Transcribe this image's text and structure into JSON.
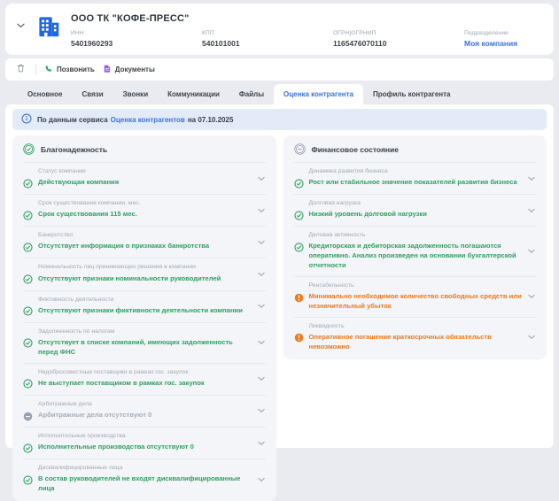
{
  "header": {
    "company_name": "ООО ТК \"КОФЕ-ПРЕСС\"",
    "fields": [
      {
        "id": "inn",
        "label": "ИНН",
        "value": "5401960293",
        "link": false
      },
      {
        "id": "kpp",
        "label": "КПП",
        "value": "540101001",
        "link": false
      },
      {
        "id": "ogrn",
        "label": "ОГРН|ОГРНИП",
        "value": "1165476070110",
        "link": false
      },
      {
        "id": "division",
        "label": "Подразделение",
        "value": "Моя компания",
        "link": true
      }
    ]
  },
  "toolbar": {
    "call_label": "Позвонить",
    "documents_label": "Документы"
  },
  "tabs": [
    {
      "id": "main",
      "label": "Основное",
      "active": false
    },
    {
      "id": "relations",
      "label": "Связи",
      "active": false
    },
    {
      "id": "calls",
      "label": "Звонки",
      "active": false
    },
    {
      "id": "communications",
      "label": "Коммуникации",
      "active": false
    },
    {
      "id": "files",
      "label": "Файлы",
      "active": false
    },
    {
      "id": "assessment",
      "label": "Оценка контрагента",
      "active": true
    },
    {
      "id": "profile",
      "label": "Профиль контрагента",
      "active": false
    }
  ],
  "banner": {
    "prefix": "По данным сервиса",
    "link_label": "Оценка контрагентов",
    "suffix": "на 07.10.2025"
  },
  "panels": [
    {
      "id": "reliability",
      "title": "Благонадежность",
      "status": "good",
      "items": [
        {
          "label": "Статус компании",
          "value": "Действующая компания",
          "status": "good"
        },
        {
          "label": "Срок существования компании, мес.",
          "value": "Срок существования 115 мес.",
          "status": "good"
        },
        {
          "label": "Банкротство",
          "value": "Отсутствует информация о признаках банкротства",
          "status": "good"
        },
        {
          "label": "Номинальность лиц принимающих решения в компании",
          "value": "Отсутствуют признаки номинальности руководителей",
          "status": "good"
        },
        {
          "label": "Фиктивность деятельности",
          "value": "Отсутствуют признаки фиктивности деятельности компании",
          "status": "good"
        },
        {
          "label": "Задолженность по налогам",
          "value": "Отсутствует в списке компаний, имеющих задолженность перед ФНС",
          "status": "good"
        },
        {
          "label": "Недобросовестные поставщики в рамках гос. закупок",
          "value": "Не выступает поставщиком в рамках гос. закупок",
          "status": "good"
        },
        {
          "label": "Арбитражные дела",
          "value": "Арбитражные дела отсутствуют 0",
          "status": "neutral"
        },
        {
          "label": "Исполнительные производства",
          "value": "Исполнительные производства отсутствуют 0",
          "status": "good"
        },
        {
          "label": "Дисквалифицированные лица",
          "value": "В состав руководителей не входят дисквалифицированные лица",
          "status": "good"
        }
      ]
    },
    {
      "id": "financial-state",
      "title": "Финансовое состояние",
      "status": "neutral",
      "items": [
        {
          "label": "Динамика развития бизнеса",
          "value": "Рост или стабильное значение показателей развития бизнеса",
          "status": "good"
        },
        {
          "label": "Долговая нагрузка",
          "value": "Низкий уровень долговой нагрузки",
          "status": "good"
        },
        {
          "label": "Деловая активность",
          "value": "Кредиторская и дебиторская задолженность погашаются оперативно. Анализ произведен на основании бухгалтерской отчетности",
          "status": "good"
        },
        {
          "label": "Рентабельность",
          "value": "Минимально необходимое количество свободных средств или незначительный убыток",
          "status": "warning"
        },
        {
          "label": "Ликвидность",
          "value": "Оперативное погашение краткосрочных обязательств невозможно",
          "status": "warning"
        }
      ]
    }
  ],
  "colors": {
    "status_good": "#2f9e5f",
    "status_warning": "#e8791d",
    "status_neutral": "#a6adb7",
    "link_blue": "#3e73d3",
    "brand_icon_blue": "#2066e0",
    "phone_green": "#27ae60",
    "document_purple": "#9b5fe3",
    "banner_bg": "#e3eaf8",
    "panel_bg": "#f3f5f9",
    "page_bg": "#e9ebf0"
  }
}
